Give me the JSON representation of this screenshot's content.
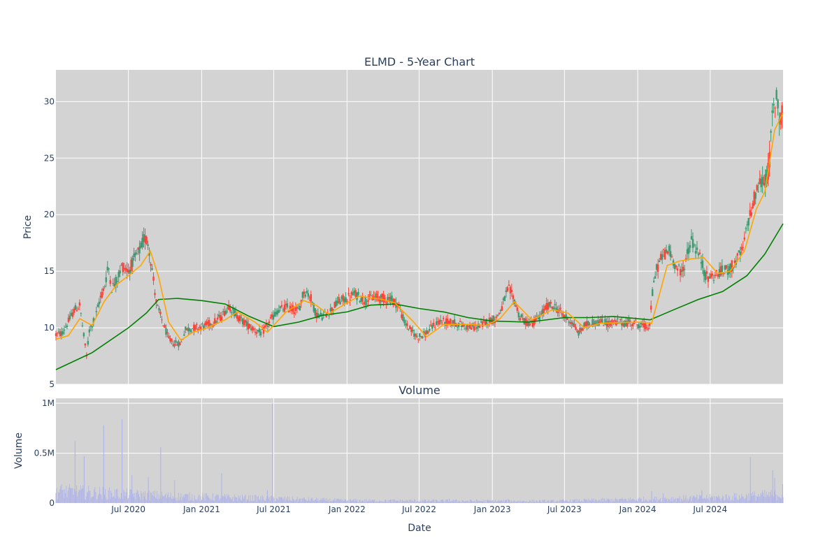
{
  "chart_data": [
    {
      "type": "candlestick",
      "title": "ELMD - 5-Year Chart",
      "ylabel": "Price",
      "xlabel": "",
      "x_range": [
        "2020-01-01",
        "2024-12-31"
      ],
      "ylim": [
        5,
        32.8
      ],
      "yticks": [
        5,
        10,
        15,
        20,
        25,
        30
      ],
      "grid": true,
      "colors": {
        "increasing": "#3d9970",
        "decreasing": "#ff4136",
        "ma_short": "#ffa500",
        "ma_long": "#008000",
        "plot_bg": "#d3d3d3"
      },
      "price_path": [
        [
          "2020-01-01",
          9.4
        ],
        [
          "2020-01-15",
          9.5
        ],
        [
          "2020-02-01",
          10.5
        ],
        [
          "2020-02-15",
          11.5
        ],
        [
          "2020-03-01",
          12.0
        ],
        [
          "2020-03-10",
          9.5
        ],
        [
          "2020-03-18",
          7.5
        ],
        [
          "2020-03-25",
          9.8
        ],
        [
          "2020-04-10",
          11.0
        ],
        [
          "2020-04-20",
          12.5
        ],
        [
          "2020-05-01",
          13.5
        ],
        [
          "2020-05-12",
          15.5
        ],
        [
          "2020-05-20",
          13.5
        ],
        [
          "2020-06-01",
          14.2
        ],
        [
          "2020-06-15",
          15.5
        ],
        [
          "2020-07-01",
          15.0
        ],
        [
          "2020-07-15",
          16.0
        ],
        [
          "2020-08-01",
          17.0
        ],
        [
          "2020-08-10",
          18.0
        ],
        [
          "2020-08-20",
          17.5
        ],
        [
          "2020-09-01",
          14.5
        ],
        [
          "2020-09-10",
          12.0
        ],
        [
          "2020-09-25",
          10.5
        ],
        [
          "2020-10-10",
          9.0
        ],
        [
          "2020-10-25",
          8.6
        ],
        [
          "2020-11-10",
          8.6
        ],
        [
          "2020-11-20",
          9.8
        ],
        [
          "2020-12-10",
          10.0
        ],
        [
          "2021-01-01",
          10.1
        ],
        [
          "2021-02-01",
          10.5
        ],
        [
          "2021-02-20",
          11.0
        ],
        [
          "2021-03-10",
          12.0
        ],
        [
          "2021-04-01",
          11.0
        ],
        [
          "2021-04-20",
          10.4
        ],
        [
          "2021-05-15",
          9.8
        ],
        [
          "2021-06-01",
          9.5
        ],
        [
          "2021-06-20",
          10.5
        ],
        [
          "2021-07-10",
          11.5
        ],
        [
          "2021-08-01",
          11.8
        ],
        [
          "2021-09-01",
          11.5
        ],
        [
          "2021-09-15",
          13.3
        ],
        [
          "2021-10-01",
          12.8
        ],
        [
          "2021-10-15",
          11.2
        ],
        [
          "2021-11-01",
          11.0
        ],
        [
          "2021-11-20",
          11.5
        ],
        [
          "2021-12-10",
          12.3
        ],
        [
          "2022-01-01",
          12.6
        ],
        [
          "2022-01-20",
          13.0
        ],
        [
          "2022-02-15",
          12.4
        ],
        [
          "2022-03-10",
          12.7
        ],
        [
          "2022-04-01",
          12.6
        ],
        [
          "2022-04-20",
          12.6
        ],
        [
          "2022-05-10",
          12.0
        ],
        [
          "2022-05-25",
          10.5
        ],
        [
          "2022-06-10",
          9.8
        ],
        [
          "2022-06-25",
          9.2
        ],
        [
          "2022-07-15",
          9.4
        ],
        [
          "2022-08-01",
          10.0
        ],
        [
          "2022-08-20",
          10.6
        ],
        [
          "2022-09-10",
          10.5
        ],
        [
          "2022-10-01",
          10.4
        ],
        [
          "2022-10-20",
          10.2
        ],
        [
          "2022-11-10",
          10.0
        ],
        [
          "2022-12-01",
          10.2
        ],
        [
          "2022-12-20",
          10.6
        ],
        [
          "2023-01-10",
          10.8
        ],
        [
          "2023-01-25",
          11.8
        ],
        [
          "2023-02-10",
          13.5
        ],
        [
          "2023-02-25",
          12.5
        ],
        [
          "2023-03-10",
          11.0
        ],
        [
          "2023-03-25",
          10.5
        ],
        [
          "2023-04-10",
          10.4
        ],
        [
          "2023-05-01",
          11.0
        ],
        [
          "2023-05-20",
          12.0
        ],
        [
          "2023-06-10",
          11.8
        ],
        [
          "2023-07-01",
          11.0
        ],
        [
          "2023-07-20",
          10.5
        ],
        [
          "2023-08-05",
          9.5
        ],
        [
          "2023-08-20",
          10.2
        ],
        [
          "2023-09-10",
          10.5
        ],
        [
          "2023-10-01",
          10.5
        ],
        [
          "2023-10-20",
          10.4
        ],
        [
          "2023-11-10",
          10.5
        ],
        [
          "2023-12-01",
          10.4
        ],
        [
          "2023-12-20",
          10.5
        ],
        [
          "2024-01-10",
          10.2
        ],
        [
          "2024-01-31",
          10.1
        ],
        [
          "2024-02-05",
          12.5
        ],
        [
          "2024-02-15",
          15.0
        ],
        [
          "2024-03-05",
          16.5
        ],
        [
          "2024-03-20",
          16.8
        ],
        [
          "2024-04-05",
          15.5
        ],
        [
          "2024-04-20",
          14.8
        ],
        [
          "2024-05-05",
          16.5
        ],
        [
          "2024-05-15",
          17.8
        ],
        [
          "2024-05-28",
          16.8
        ],
        [
          "2024-06-10",
          15.8
        ],
        [
          "2024-06-20",
          14.5
        ],
        [
          "2024-07-10",
          14.6
        ],
        [
          "2024-08-01",
          15.0
        ],
        [
          "2024-08-20",
          15.2
        ],
        [
          "2024-09-05",
          16.0
        ],
        [
          "2024-09-20",
          16.8
        ],
        [
          "2024-10-05",
          19.5
        ],
        [
          "2024-10-20",
          21.5
        ],
        [
          "2024-11-05",
          23.0
        ],
        [
          "2024-11-15",
          22.8
        ],
        [
          "2024-11-25",
          24.0
        ],
        [
          "2024-12-05",
          29.0
        ],
        [
          "2024-12-15",
          30.5
        ],
        [
          "2024-12-22",
          28.5
        ],
        [
          "2024-12-31",
          29.8
        ]
      ],
      "ma_short": [
        [
          "2020-01-01",
          9.0
        ],
        [
          "2020-02-01",
          9.3
        ],
        [
          "2020-03-01",
          10.8
        ],
        [
          "2020-04-01",
          10.2
        ],
        [
          "2020-05-01",
          12.3
        ],
        [
          "2020-06-01",
          13.8
        ],
        [
          "2020-07-01",
          14.6
        ],
        [
          "2020-08-01",
          15.5
        ],
        [
          "2020-08-25",
          16.8
        ],
        [
          "2020-09-15",
          14.5
        ],
        [
          "2020-10-10",
          10.5
        ],
        [
          "2020-11-10",
          8.9
        ],
        [
          "2020-12-10",
          9.6
        ],
        [
          "2021-01-15",
          10.0
        ],
        [
          "2021-03-01",
          10.7
        ],
        [
          "2021-04-01",
          11.4
        ],
        [
          "2021-05-15",
          10.5
        ],
        [
          "2021-06-15",
          9.6
        ],
        [
          "2021-08-01",
          11.4
        ],
        [
          "2021-09-15",
          12.4
        ],
        [
          "2021-10-15",
          12.0
        ],
        [
          "2021-11-15",
          11.2
        ],
        [
          "2022-01-01",
          12.2
        ],
        [
          "2022-02-01",
          12.8
        ],
        [
          "2022-04-01",
          12.5
        ],
        [
          "2022-05-01",
          12.2
        ],
        [
          "2022-06-15",
          10.6
        ],
        [
          "2022-07-20",
          9.2
        ],
        [
          "2022-09-01",
          10.3
        ],
        [
          "2022-11-01",
          10.3
        ],
        [
          "2022-12-15",
          10.2
        ],
        [
          "2023-01-20",
          10.8
        ],
        [
          "2023-02-25",
          12.3
        ],
        [
          "2023-04-10",
          10.7
        ],
        [
          "2023-06-01",
          11.6
        ],
        [
          "2023-07-10",
          11.3
        ],
        [
          "2023-08-20",
          10.0
        ],
        [
          "2023-10-01",
          10.4
        ],
        [
          "2024-01-01",
          10.5
        ],
        [
          "2024-02-05",
          10.4
        ],
        [
          "2024-03-15",
          15.5
        ],
        [
          "2024-04-15",
          15.9
        ],
        [
          "2024-05-15",
          16.1
        ],
        [
          "2024-06-15",
          16.2
        ],
        [
          "2024-07-20",
          14.8
        ],
        [
          "2024-08-20",
          15.0
        ],
        [
          "2024-09-25",
          16.8
        ],
        [
          "2024-10-25",
          20.5
        ],
        [
          "2024-11-15",
          22.0
        ],
        [
          "2024-12-10",
          27.5
        ],
        [
          "2024-12-31",
          29.0
        ]
      ],
      "ma_long": [
        [
          "2020-01-01",
          6.3
        ],
        [
          "2020-04-01",
          7.8
        ],
        [
          "2020-07-01",
          10.0
        ],
        [
          "2020-08-15",
          11.3
        ],
        [
          "2020-09-15",
          12.5
        ],
        [
          "2020-11-01",
          12.6
        ],
        [
          "2021-01-01",
          12.4
        ],
        [
          "2021-03-01",
          12.1
        ],
        [
          "2021-05-01",
          11.0
        ],
        [
          "2021-07-01",
          10.1
        ],
        [
          "2021-09-01",
          10.5
        ],
        [
          "2021-11-01",
          11.1
        ],
        [
          "2022-01-01",
          11.4
        ],
        [
          "2022-03-01",
          12.0
        ],
        [
          "2022-05-01",
          12.1
        ],
        [
          "2022-07-01",
          11.7
        ],
        [
          "2022-09-01",
          11.4
        ],
        [
          "2022-11-01",
          10.9
        ],
        [
          "2023-01-01",
          10.6
        ],
        [
          "2023-04-01",
          10.5
        ],
        [
          "2023-07-01",
          10.9
        ],
        [
          "2023-09-01",
          10.9
        ],
        [
          "2023-11-01",
          11.0
        ],
        [
          "2024-02-01",
          10.7
        ],
        [
          "2024-04-01",
          11.6
        ],
        [
          "2024-06-01",
          12.5
        ],
        [
          "2024-08-01",
          13.2
        ],
        [
          "2024-10-01",
          14.6
        ],
        [
          "2024-11-15",
          16.5
        ],
        [
          "2024-12-31",
          19.2
        ]
      ]
    },
    {
      "type": "bar",
      "title": "Volume",
      "ylabel": "Volume",
      "xlabel": "Date",
      "ylim": [
        0,
        1050000
      ],
      "yticks": [
        0,
        500000,
        1000000
      ],
      "ytick_labels": [
        "0",
        "0.5M",
        "1M"
      ],
      "xticks": [
        "2020-07-01",
        "2021-01-01",
        "2021-07-01",
        "2022-01-01",
        "2022-07-01",
        "2023-01-01",
        "2023-07-01",
        "2024-01-01",
        "2024-07-01"
      ],
      "xtick_labels": [
        "Jul 2020",
        "Jan 2021",
        "Jul 2021",
        "Jan 2022",
        "Jul 2022",
        "Jan 2023",
        "Jul 2023",
        "Jan 2024",
        "Jul 2024"
      ],
      "bar_color": "#b0b4e8",
      "spikes": [
        [
          "2020-02-18",
          620000
        ],
        [
          "2020-03-12",
          470000
        ],
        [
          "2020-04-30",
          780000
        ],
        [
          "2020-06-15",
          840000
        ],
        [
          "2020-07-10",
          280000
        ],
        [
          "2020-08-20",
          260000
        ],
        [
          "2020-09-20",
          560000
        ],
        [
          "2020-10-25",
          230000
        ],
        [
          "2021-02-20",
          300000
        ],
        [
          "2021-06-28",
          1000000
        ],
        [
          "2021-06-15",
          130000
        ],
        [
          "2022-09-15",
          45000
        ],
        [
          "2023-02-10",
          40000
        ],
        [
          "2024-02-05",
          120000
        ],
        [
          "2024-03-05",
          100000
        ],
        [
          "2024-06-10",
          130000
        ],
        [
          "2024-10-10",
          460000
        ],
        [
          "2024-12-05",
          330000
        ],
        [
          "2024-12-10",
          250000
        ],
        [
          "2024-12-30",
          190000
        ]
      ],
      "baseline_levels": [
        [
          "2020-01-01",
          120000
        ],
        [
          "2020-10-01",
          70000
        ],
        [
          "2021-07-01",
          45000
        ],
        [
          "2022-01-01",
          25000
        ],
        [
          "2023-06-01",
          20000
        ],
        [
          "2024-02-01",
          40000
        ],
        [
          "2024-09-01",
          60000
        ],
        [
          "2024-12-31",
          90000
        ]
      ]
    }
  ]
}
